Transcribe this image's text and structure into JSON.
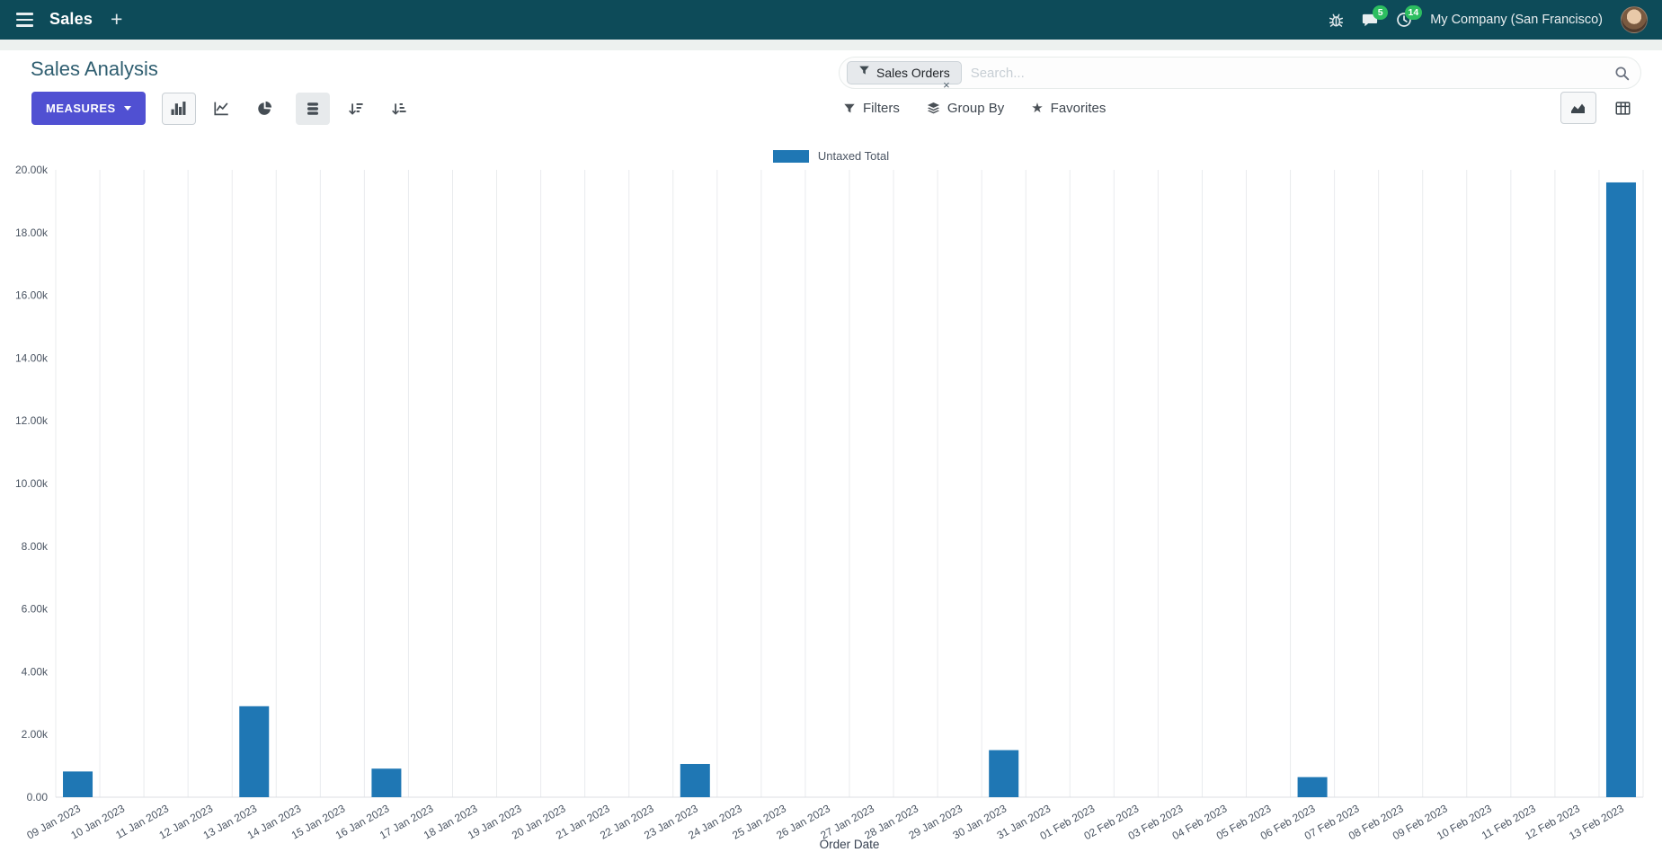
{
  "navbar": {
    "app_name": "Sales",
    "plus_label": "+",
    "messages_badge": "5",
    "activities_badge": "14",
    "company": "My Company (San Francisco)"
  },
  "control_panel": {
    "title": "Sales Analysis",
    "measures_label": "MEASURES",
    "filters_label": "Filters",
    "group_by_label": "Group By",
    "favorites_label": "Favorites",
    "search": {
      "facet_label": "Sales Orders",
      "placeholder": "Search...",
      "remove_label": "×"
    }
  },
  "icons": {
    "favorites_star": "★"
  },
  "chart_data": {
    "type": "bar",
    "title": "",
    "legend": "Untaxed Total",
    "legend_position": "top",
    "series_color": "#1f77b4",
    "xlabel": "Order Date",
    "ylabel": "",
    "ylim": [
      0,
      20000
    ],
    "grid": "vertical",
    "y_tick_values": [
      0,
      2000,
      4000,
      6000,
      8000,
      10000,
      12000,
      14000,
      16000,
      18000,
      20000
    ],
    "y_tick_labels": [
      "0.00",
      "2.00k",
      "4.00k",
      "6.00k",
      "8.00k",
      "10.00k",
      "12.00k",
      "14.00k",
      "16.00k",
      "18.00k",
      "20.00k"
    ],
    "categories": [
      "09 Jan 2023",
      "10 Jan 2023",
      "11 Jan 2023",
      "12 Jan 2023",
      "13 Jan 2023",
      "14 Jan 2023",
      "15 Jan 2023",
      "16 Jan 2023",
      "17 Jan 2023",
      "18 Jan 2023",
      "19 Jan 2023",
      "20 Jan 2023",
      "21 Jan 2023",
      "22 Jan 2023",
      "23 Jan 2023",
      "24 Jan 2023",
      "25 Jan 2023",
      "26 Jan 2023",
      "27 Jan 2023",
      "28 Jan 2023",
      "29 Jan 2023",
      "30 Jan 2023",
      "31 Jan 2023",
      "01 Feb 2023",
      "02 Feb 2023",
      "03 Feb 2023",
      "04 Feb 2023",
      "05 Feb 2023",
      "06 Feb 2023",
      "07 Feb 2023",
      "08 Feb 2023",
      "09 Feb 2023",
      "10 Feb 2023",
      "11 Feb 2023",
      "12 Feb 2023",
      "13 Feb 2023"
    ],
    "values": [
      820,
      0,
      0,
      0,
      2900,
      0,
      0,
      910,
      0,
      0,
      0,
      0,
      0,
      0,
      1060,
      0,
      0,
      0,
      0,
      0,
      0,
      1500,
      0,
      0,
      0,
      0,
      0,
      0,
      640,
      0,
      0,
      0,
      0,
      0,
      0,
      19600
    ]
  }
}
